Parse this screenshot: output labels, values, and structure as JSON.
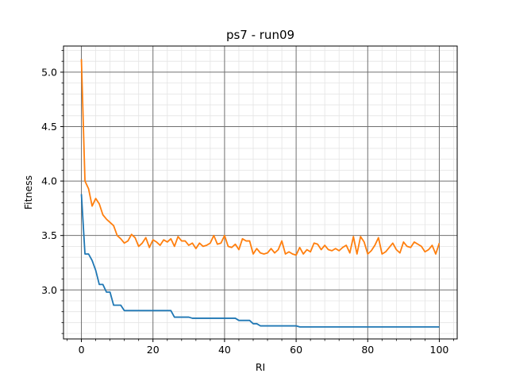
{
  "chart_data": {
    "type": "line",
    "title": "ps7 - run09",
    "xlabel": "RI",
    "ylabel": "Fitness",
    "xlim": [
      -5,
      105
    ],
    "ylim": [
      2.55,
      5.24
    ],
    "x_major_ticks": [
      0,
      20,
      40,
      60,
      80,
      100
    ],
    "x_tick_labels": [
      "0",
      "20",
      "40",
      "60",
      "80",
      "100"
    ],
    "y_major_ticks": [
      3.0,
      3.5,
      4.0,
      4.5,
      5.0
    ],
    "y_tick_labels": [
      "3.0",
      "3.5",
      "4.0",
      "4.5",
      "5.0"
    ],
    "x_minor_step": 4,
    "y_minor_step": 0.1,
    "grid": true,
    "legend": "none",
    "series": [
      {
        "color": "#1f77b4",
        "values": [
          3.88,
          3.33,
          3.33,
          3.27,
          3.18,
          3.05,
          3.05,
          2.98,
          2.98,
          2.86,
          2.86,
          2.86,
          2.81,
          2.81,
          2.81,
          2.81,
          2.81,
          2.81,
          2.81,
          2.81,
          2.81,
          2.81,
          2.81,
          2.81,
          2.81,
          2.81,
          2.75,
          2.75,
          2.75,
          2.75,
          2.75,
          2.74,
          2.74,
          2.74,
          2.74,
          2.74,
          2.74,
          2.74,
          2.74,
          2.74,
          2.74,
          2.74,
          2.74,
          2.74,
          2.72,
          2.72,
          2.72,
          2.72,
          2.69,
          2.69,
          2.67,
          2.67,
          2.67,
          2.67,
          2.67,
          2.67,
          2.67,
          2.67,
          2.67,
          2.67,
          2.67,
          2.66,
          2.66,
          2.66,
          2.66,
          2.66,
          2.66,
          2.66,
          2.66,
          2.66,
          2.66,
          2.66,
          2.66,
          2.66,
          2.66,
          2.66,
          2.66,
          2.66,
          2.66,
          2.66,
          2.66,
          2.66,
          2.66,
          2.66,
          2.66,
          2.66,
          2.66,
          2.66,
          2.66,
          2.66,
          2.66,
          2.66,
          2.66,
          2.66,
          2.66,
          2.66,
          2.66,
          2.66,
          2.66,
          2.66,
          2.66
        ]
      },
      {
        "color": "#ff7f0e",
        "values": [
          5.12,
          4.0,
          3.93,
          3.77,
          3.84,
          3.79,
          3.69,
          3.65,
          3.62,
          3.59,
          3.5,
          3.47,
          3.43,
          3.45,
          3.51,
          3.48,
          3.4,
          3.43,
          3.48,
          3.39,
          3.46,
          3.44,
          3.41,
          3.46,
          3.44,
          3.47,
          3.4,
          3.49,
          3.45,
          3.45,
          3.41,
          3.43,
          3.38,
          3.43,
          3.4,
          3.41,
          3.43,
          3.5,
          3.42,
          3.43,
          3.5,
          3.4,
          3.39,
          3.42,
          3.37,
          3.47,
          3.45,
          3.45,
          3.33,
          3.38,
          3.34,
          3.33,
          3.34,
          3.38,
          3.34,
          3.37,
          3.45,
          3.33,
          3.35,
          3.33,
          3.32,
          3.39,
          3.33,
          3.37,
          3.35,
          3.43,
          3.42,
          3.37,
          3.41,
          3.37,
          3.36,
          3.38,
          3.36,
          3.39,
          3.41,
          3.34,
          3.49,
          3.33,
          3.49,
          3.44,
          3.33,
          3.36,
          3.41,
          3.48,
          3.33,
          3.35,
          3.39,
          3.43,
          3.37,
          3.34,
          3.44,
          3.4,
          3.39,
          3.44,
          3.42,
          3.4,
          3.35,
          3.37,
          3.41,
          3.33,
          3.43
        ]
      }
    ]
  }
}
